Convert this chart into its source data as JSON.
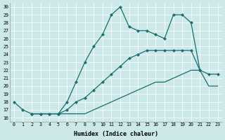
{
  "xlabel": "Humidex (Indice chaleur)",
  "bg_color": "#cce8e8",
  "line_color": "#1a6e6e",
  "xlim": [
    -0.5,
    23.5
  ],
  "ylim": [
    15.5,
    30.5
  ],
  "xticks": [
    0,
    1,
    2,
    3,
    4,
    5,
    6,
    7,
    8,
    9,
    10,
    11,
    12,
    13,
    14,
    15,
    16,
    17,
    18,
    19,
    20,
    21,
    22,
    23
  ],
  "yticks": [
    16,
    17,
    18,
    19,
    20,
    21,
    22,
    23,
    24,
    25,
    26,
    27,
    28,
    29,
    30
  ],
  "line1_x": [
    0,
    1,
    2,
    3,
    4,
    5,
    6,
    7,
    8,
    9,
    10,
    11,
    12,
    13,
    14,
    15,
    16,
    17,
    18,
    19,
    20,
    21
  ],
  "line1_y": [
    18.0,
    17.0,
    16.5,
    16.5,
    16.5,
    16.5,
    18.0,
    20.5,
    23.0,
    25.0,
    26.5,
    29.0,
    30.0,
    27.5,
    27.0,
    27.0,
    26.5,
    26.0,
    29.0,
    29.0,
    28.0,
    22.0
  ],
  "line2_x": [
    2,
    3,
    4,
    5,
    6,
    7,
    8,
    9,
    10,
    11,
    12,
    13,
    14,
    15,
    16,
    17,
    18,
    19,
    20,
    21,
    22,
    23
  ],
  "line2_y": [
    16.5,
    16.5,
    16.5,
    16.5,
    17.0,
    18.0,
    18.5,
    19.5,
    20.5,
    21.5,
    22.5,
    23.5,
    24.0,
    24.5,
    24.5,
    24.5,
    24.5,
    24.5,
    24.5,
    22.0,
    21.5,
    21.5
  ],
  "line3_x": [
    2,
    3,
    4,
    5,
    6,
    7,
    8,
    9,
    10,
    11,
    12,
    13,
    14,
    15,
    16,
    17,
    18,
    19,
    20,
    21,
    22,
    23
  ],
  "line3_y": [
    16.5,
    16.5,
    16.5,
    16.5,
    16.5,
    16.5,
    16.5,
    17.0,
    17.5,
    18.0,
    18.5,
    19.0,
    19.5,
    20.0,
    20.5,
    20.5,
    21.0,
    21.5,
    22.0,
    22.0,
    20.0,
    20.0
  ]
}
